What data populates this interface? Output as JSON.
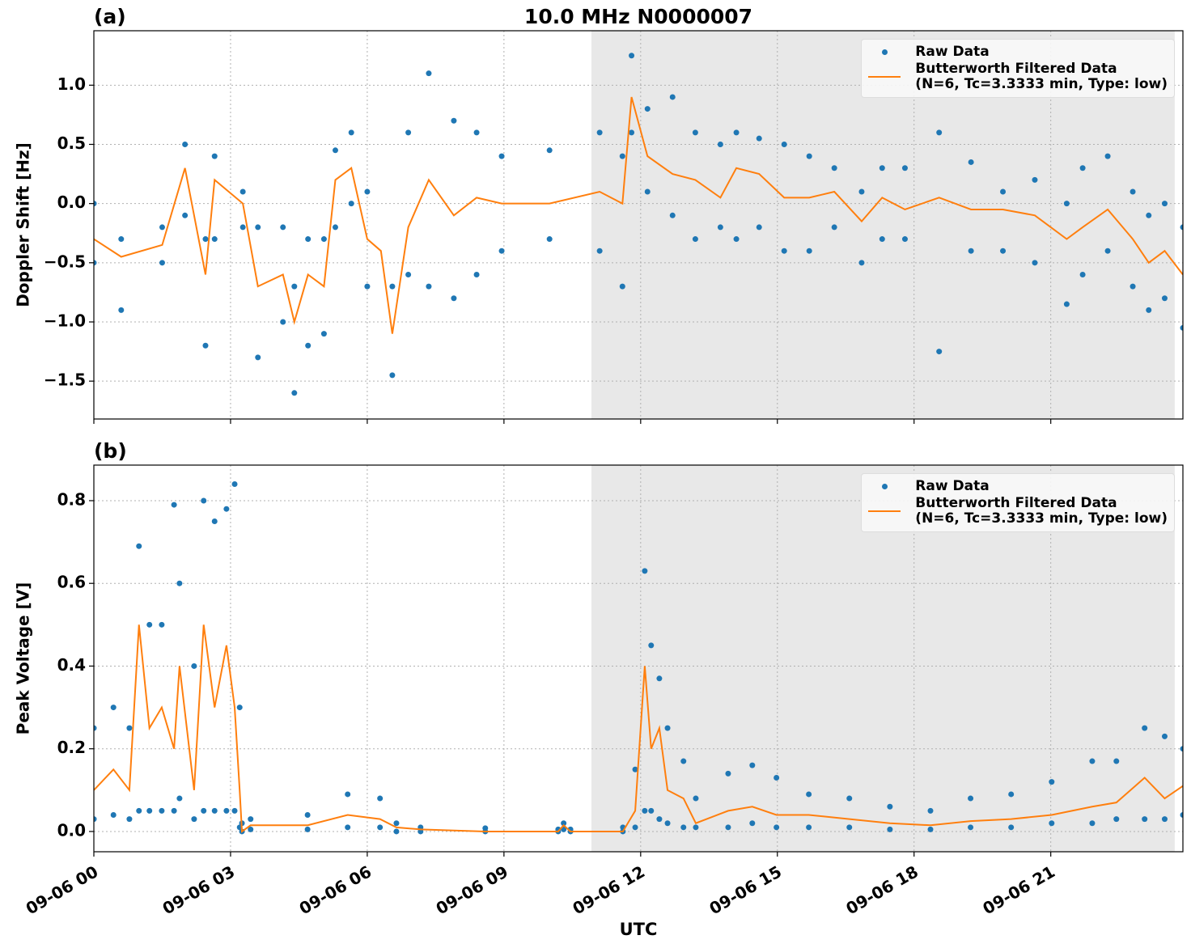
{
  "chart_data": [
    {
      "type": "scatter-line",
      "panel_label": "(a)",
      "title": "10.0 MHz N0000007",
      "ylabel": "Doppler Shift [Hz]",
      "xlim": [
        0,
        23.9
      ],
      "ylim": [
        -1.82,
        1.46
      ],
      "xticks": [
        0,
        3,
        6,
        9,
        12,
        15,
        18,
        21
      ],
      "yticks": [
        {
          "value": -1.5,
          "label": "−1.5"
        },
        {
          "value": -1.0,
          "label": "−1.0"
        },
        {
          "value": -0.5,
          "label": "−0.5"
        },
        {
          "value": 0.0,
          "label": "0.0"
        },
        {
          "value": 0.5,
          "label": "0.5"
        },
        {
          "value": 1.0,
          "label": "1.0"
        }
      ],
      "grid": true,
      "shade": [
        10.92,
        23.72
      ],
      "shade_color": "#e8e8e8",
      "legend": "upper right",
      "series": [
        {
          "name": "Raw Data",
          "kind": "scatter",
          "color": "#1f77b4",
          "x": [
            0,
            0.6,
            1.5,
            2.0,
            2.45,
            2.65,
            3.27,
            3.6,
            4.15,
            4.4,
            4.7,
            5.05,
            5.3,
            5.65,
            6.0,
            6.55,
            6.9,
            7.35,
            7.9,
            8.4,
            8.95,
            10.0,
            11.1,
            11.6,
            11.8,
            12.15,
            12.7,
            13.2,
            13.75,
            14.1,
            14.6,
            15.15,
            15.7,
            16.25,
            16.85,
            17.3,
            17.8,
            18.55,
            19.25,
            19.95,
            20.65,
            21.35,
            21.7,
            22.25,
            22.8,
            23.15,
            23.5,
            23.9,
            0,
            0.6,
            1.5,
            2.0,
            2.45,
            2.65,
            3.27,
            3.6,
            4.15,
            4.4,
            4.7,
            5.05,
            5.3,
            5.65,
            6.0,
            6.55,
            6.9,
            7.35,
            7.9,
            8.4,
            8.95,
            10.0,
            11.1,
            11.6,
            11.8,
            12.15,
            12.7,
            13.2,
            13.75,
            14.1,
            14.6,
            15.15,
            15.7,
            16.25,
            16.85,
            17.3,
            17.8,
            18.55,
            19.25,
            19.95,
            20.65,
            21.35,
            21.7,
            22.25,
            22.8,
            23.15,
            23.5,
            23.9
          ],
          "values": [
            0.0,
            -0.3,
            -0.2,
            0.5,
            -0.3,
            0.4,
            0.1,
            -0.2,
            -0.2,
            -0.7,
            -0.3,
            -0.3,
            0.45,
            0.6,
            0.1,
            -0.7,
            0.6,
            1.1,
            0.7,
            0.6,
            0.4,
            0.45,
            0.6,
            0.4,
            1.25,
            0.8,
            0.9,
            0.6,
            0.5,
            0.6,
            0.55,
            0.5,
            0.4,
            0.3,
            0.1,
            0.3,
            0.3,
            0.6,
            0.35,
            0.1,
            0.2,
            0.0,
            0.3,
            0.4,
            0.1,
            -0.1,
            0.0,
            -0.2,
            -0.5,
            -0.9,
            -0.5,
            -0.1,
            -1.2,
            -0.3,
            -0.2,
            -1.3,
            -1.0,
            -1.6,
            -1.2,
            -1.1,
            -0.2,
            0.0,
            -0.7,
            -1.45,
            -0.6,
            -0.7,
            -0.8,
            -0.6,
            -0.4,
            -0.3,
            -0.4,
            -0.7,
            0.6,
            0.1,
            -0.1,
            -0.3,
            -0.2,
            -0.3,
            -0.2,
            -0.4,
            -0.4,
            -0.2,
            -0.5,
            -0.3,
            -0.3,
            -1.25,
            -0.4,
            -0.4,
            -0.5,
            -0.85,
            -0.6,
            -0.4,
            -0.7,
            -0.9,
            -0.8,
            -1.05
          ]
        },
        {
          "name": "Butterworth Filtered Data\n(N=6, Tc=3.3333 min, Type: low)",
          "kind": "line",
          "color": "#ff7f0e",
          "x": [
            0,
            0.6,
            1.5,
            2.0,
            2.45,
            2.65,
            3.27,
            3.6,
            4.15,
            4.4,
            4.7,
            5.05,
            5.3,
            5.65,
            6.0,
            6.3,
            6.55,
            6.9,
            7.35,
            7.9,
            8.4,
            8.95,
            10.0,
            11.1,
            11.6,
            11.8,
            12.15,
            12.7,
            13.2,
            13.75,
            14.1,
            14.6,
            15.15,
            15.7,
            16.25,
            16.85,
            17.3,
            17.8,
            18.55,
            19.25,
            19.95,
            20.65,
            21.35,
            21.7,
            22.25,
            22.8,
            23.15,
            23.5,
            23.9
          ],
          "values": [
            -0.3,
            -0.45,
            -0.35,
            0.3,
            -0.6,
            0.2,
            0.0,
            -0.7,
            -0.6,
            -1.0,
            -0.6,
            -0.7,
            0.2,
            0.3,
            -0.3,
            -0.4,
            -1.1,
            -0.2,
            0.2,
            -0.1,
            0.05,
            0.0,
            0.0,
            0.1,
            0.0,
            0.9,
            0.4,
            0.25,
            0.2,
            0.05,
            0.3,
            0.25,
            0.05,
            0.05,
            0.1,
            -0.15,
            0.05,
            -0.05,
            0.05,
            -0.05,
            -0.05,
            -0.1,
            -0.3,
            -0.2,
            -0.05,
            -0.3,
            -0.5,
            -0.4,
            -0.6
          ]
        }
      ]
    },
    {
      "type": "scatter-line",
      "panel_label": "(b)",
      "ylabel": "Peak Voltage [V]",
      "xlabel": "UTC",
      "xlim": [
        0,
        23.9
      ],
      "ylim": [
        -0.049,
        0.886
      ],
      "xticks": [
        {
          "value": 0,
          "label": "09-06 00"
        },
        {
          "value": 3,
          "label": "09-06 03"
        },
        {
          "value": 6,
          "label": "09-06 06"
        },
        {
          "value": 9,
          "label": "09-06 09"
        },
        {
          "value": 12,
          "label": "09-06 12"
        },
        {
          "value": 15,
          "label": "09-06 15"
        },
        {
          "value": 18,
          "label": "09-06 18"
        },
        {
          "value": 21,
          "label": "09-06 21"
        }
      ],
      "yticks": [
        {
          "value": 0.0,
          "label": "0.0"
        },
        {
          "value": 0.2,
          "label": "0.2"
        },
        {
          "value": 0.4,
          "label": "0.4"
        },
        {
          "value": 0.6,
          "label": "0.6"
        },
        {
          "value": 0.8,
          "label": "0.8"
        }
      ],
      "grid": true,
      "shade": [
        10.92,
        23.72
      ],
      "shade_color": "#e8e8e8",
      "legend": "upper right",
      "series": [
        {
          "name": "Raw Data",
          "kind": "scatter",
          "color": "#1f77b4",
          "x": [
            0,
            0.43,
            0.78,
            0.99,
            1.22,
            1.49,
            1.76,
            1.88,
            2.2,
            2.41,
            2.65,
            2.91,
            3.09,
            3.2,
            3.25,
            3.44,
            4.69,
            5.57,
            6.28,
            6.64,
            7.17,
            8.59,
            10.19,
            10.31,
            10.46,
            11.61,
            11.88,
            12.09,
            12.23,
            12.41,
            12.59,
            12.94,
            13.21,
            13.92,
            14.45,
            14.98,
            15.69,
            16.58,
            17.47,
            18.36,
            19.24,
            20.13,
            21.02,
            21.91,
            22.44,
            23.06,
            23.5,
            23.9,
            0,
            0.43,
            0.78,
            0.99,
            1.22,
            1.49,
            1.76,
            1.88,
            2.2,
            2.41,
            2.65,
            2.91,
            3.09,
            3.2,
            3.25,
            3.44,
            4.69,
            5.57,
            6.28,
            6.64,
            7.17,
            8.59,
            10.19,
            10.31,
            10.46,
            11.61,
            11.88,
            12.09,
            12.23,
            12.41,
            12.59,
            12.94,
            13.21,
            13.92,
            14.45,
            14.98,
            15.69,
            16.58,
            17.47,
            18.36,
            19.24,
            20.13,
            21.02,
            21.91,
            22.44,
            23.06,
            23.5,
            23.9
          ],
          "values": [
            0.25,
            0.3,
            0.25,
            0.69,
            0.5,
            0.5,
            0.79,
            0.6,
            0.4,
            0.8,
            0.75,
            0.78,
            0.84,
            0.3,
            0.02,
            0.03,
            0.04,
            0.09,
            0.08,
            0.02,
            0.01,
            0.008,
            0.005,
            0.02,
            0.005,
            0.01,
            0.15,
            0.63,
            0.45,
            0.37,
            0.25,
            0.17,
            0.08,
            0.14,
            0.16,
            0.13,
            0.09,
            0.08,
            0.06,
            0.05,
            0.08,
            0.09,
            0.12,
            0.17,
            0.17,
            0.25,
            0.23,
            0.2,
            0.03,
            0.04,
            0.03,
            0.05,
            0.05,
            0.05,
            0.05,
            0.08,
            0.03,
            0.05,
            0.05,
            0.05,
            0.05,
            0.01,
            0.0,
            0.005,
            0.005,
            0.01,
            0.01,
            0.0,
            0.0,
            0.0,
            0.0,
            0.005,
            0.0,
            0.0,
            0.01,
            0.05,
            0.05,
            0.03,
            0.02,
            0.01,
            0.01,
            0.01,
            0.02,
            0.01,
            0.01,
            0.01,
            0.005,
            0.005,
            0.01,
            0.01,
            0.02,
            0.02,
            0.03,
            0.03,
            0.03,
            0.04
          ]
        },
        {
          "name": "Butterworth Filtered Data\n(N=6, Tc=3.3333 min, Type: low)",
          "kind": "line",
          "color": "#ff7f0e",
          "x": [
            0,
            0.43,
            0.78,
            0.99,
            1.22,
            1.49,
            1.76,
            1.88,
            2.2,
            2.41,
            2.65,
            2.91,
            3.09,
            3.2,
            3.25,
            3.44,
            4.69,
            5.57,
            6.28,
            6.64,
            7.17,
            8.59,
            10.19,
            10.31,
            10.46,
            11.61,
            11.88,
            12.09,
            12.23,
            12.41,
            12.59,
            12.94,
            13.21,
            13.92,
            14.45,
            14.98,
            15.69,
            16.58,
            17.47,
            18.36,
            19.24,
            20.13,
            21.02,
            21.91,
            22.44,
            23.06,
            23.5,
            23.9
          ],
          "values": [
            0.1,
            0.15,
            0.1,
            0.5,
            0.25,
            0.3,
            0.2,
            0.4,
            0.1,
            0.5,
            0.3,
            0.45,
            0.3,
            0.1,
            0.0,
            0.015,
            0.015,
            0.04,
            0.03,
            0.01,
            0.005,
            0.0,
            0.0,
            0.015,
            0.0,
            0.0,
            0.05,
            0.4,
            0.2,
            0.25,
            0.1,
            0.08,
            0.02,
            0.05,
            0.06,
            0.04,
            0.04,
            0.03,
            0.02,
            0.015,
            0.025,
            0.03,
            0.04,
            0.06,
            0.07,
            0.13,
            0.08,
            0.11
          ]
        }
      ]
    }
  ]
}
